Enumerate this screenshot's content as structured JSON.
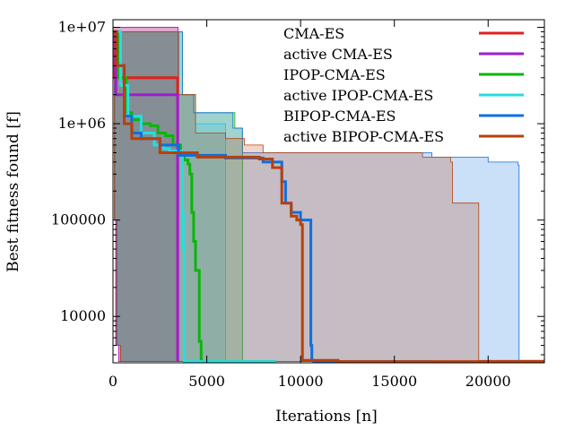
{
  "chart_data": {
    "type": "line",
    "title": "",
    "xlabel": "Iterations [n]",
    "ylabel": "Best fitness found [f]",
    "xlim": [
      0,
      23000
    ],
    "ylim": [
      3300,
      12000000
    ],
    "yscale": "log",
    "grid": false,
    "legend_position": "top-right",
    "x_ticks": [
      {
        "value": 0,
        "label": "0"
      },
      {
        "value": 5000,
        "label": "5000"
      },
      {
        "value": 10000,
        "label": "10000"
      },
      {
        "value": 15000,
        "label": "15000"
      },
      {
        "value": 20000,
        "label": "20000"
      }
    ],
    "y_ticks": [
      {
        "value": 10000000,
        "label": "1e+07"
      },
      {
        "value": 1000000,
        "label": "1e+06"
      },
      {
        "value": 100000,
        "label": "100000"
      },
      {
        "value": 10000,
        "label": "10000"
      }
    ],
    "series": [
      {
        "name": "CMA-ES",
        "color": "#e0201b",
        "median": [
          [
            0,
            9000000
          ],
          [
            100,
            3000000
          ],
          [
            3400,
            3000000
          ],
          [
            3450,
            3400
          ]
        ],
        "band_upper": [
          [
            0,
            10000000
          ],
          [
            3450,
            10000000
          ],
          [
            3460,
            3400
          ]
        ],
        "band_lower": [
          [
            0,
            9000000
          ],
          [
            80,
            100000
          ],
          [
            150,
            5000
          ],
          [
            300,
            3400
          ],
          [
            3460,
            3400
          ]
        ]
      },
      {
        "name": "active CMA-ES",
        "color": "#a31ad5",
        "median": [
          [
            0,
            9000000
          ],
          [
            150,
            2000000
          ],
          [
            3400,
            2000000
          ],
          [
            3450,
            3400
          ]
        ],
        "band_upper": [
          [
            0,
            10000000
          ],
          [
            3450,
            10000000
          ],
          [
            3460,
            3400
          ]
        ],
        "band_lower": [
          [
            0,
            9000000
          ],
          [
            80,
            100000
          ],
          [
            150,
            5000
          ],
          [
            300,
            3400
          ],
          [
            3460,
            3400
          ]
        ]
      },
      {
        "name": "IPOP-CMA-ES",
        "color": "#0ab60a",
        "median": [
          [
            0,
            9000000
          ],
          [
            300,
            3000000
          ],
          [
            700,
            1300000
          ],
          [
            1000,
            1100000
          ],
          [
            1500,
            1000000
          ],
          [
            2000,
            950000
          ],
          [
            2400,
            800000
          ],
          [
            2800,
            750000
          ],
          [
            3200,
            600000
          ],
          [
            3600,
            470000
          ],
          [
            3800,
            420000
          ],
          [
            4000,
            380000
          ],
          [
            4100,
            300000
          ],
          [
            4200,
            120000
          ],
          [
            4300,
            60000
          ],
          [
            4400,
            30000
          ],
          [
            4600,
            5500
          ],
          [
            4700,
            3400
          ],
          [
            8700,
            3400
          ]
        ],
        "band_upper": [
          [
            0,
            9000000
          ],
          [
            3600,
            9000000
          ],
          [
            3700,
            2000000
          ],
          [
            4200,
            2000000
          ],
          [
            4400,
            1300000
          ],
          [
            6300,
            1300000
          ],
          [
            6500,
            900000
          ],
          [
            6800,
            900000
          ],
          [
            6900,
            3400
          ]
        ],
        "band_lower": [
          [
            0,
            9000000
          ],
          [
            80,
            100000
          ],
          [
            200,
            5000
          ],
          [
            400,
            3400
          ],
          [
            7000,
            3400
          ]
        ]
      },
      {
        "name": "active IPOP-CMA-ES",
        "color": "#27dde0",
        "median": [
          [
            0,
            9000000
          ],
          [
            400,
            2500000
          ],
          [
            800,
            1200000
          ],
          [
            1500,
            800000
          ],
          [
            2200,
            600000
          ],
          [
            2700,
            550000
          ],
          [
            3000,
            520000
          ],
          [
            3400,
            520000
          ],
          [
            3600,
            500000
          ],
          [
            3700,
            120000
          ],
          [
            3750,
            50000
          ],
          [
            3800,
            3400
          ],
          [
            8700,
            3400
          ]
        ],
        "band_upper": [
          [
            0,
            9000000
          ],
          [
            3400,
            9000000
          ],
          [
            3500,
            2000000
          ],
          [
            4300,
            2000000
          ],
          [
            4400,
            1000000
          ],
          [
            5900,
            1000000
          ],
          [
            6000,
            3400
          ]
        ],
        "band_lower": [
          [
            0,
            9000000
          ],
          [
            80,
            100000
          ],
          [
            200,
            5000
          ],
          [
            400,
            3400
          ],
          [
            6000,
            3400
          ]
        ]
      },
      {
        "name": "BIPOP-CMA-ES",
        "color": "#0f6fe0",
        "median": [
          [
            0,
            9000000
          ],
          [
            200,
            4000000
          ],
          [
            600,
            1200000
          ],
          [
            1000,
            800000
          ],
          [
            1500,
            700000
          ],
          [
            2500,
            600000
          ],
          [
            3500,
            470000
          ],
          [
            6000,
            440000
          ],
          [
            8000,
            400000
          ],
          [
            9000,
            250000
          ],
          [
            9200,
            150000
          ],
          [
            9500,
            120000
          ],
          [
            10000,
            100000
          ],
          [
            10500,
            100000
          ],
          [
            10550,
            5000
          ],
          [
            10600,
            3500
          ],
          [
            10700,
            3400
          ],
          [
            17000,
            3400
          ]
        ],
        "band_upper": [
          [
            0,
            9000000
          ],
          [
            3600,
            9000000
          ],
          [
            3700,
            2000000
          ],
          [
            4200,
            2000000
          ],
          [
            4300,
            1300000
          ],
          [
            6300,
            1300000
          ],
          [
            6400,
            900000
          ],
          [
            6800,
            900000
          ],
          [
            6900,
            500000
          ],
          [
            16500,
            500000
          ],
          [
            17000,
            450000
          ],
          [
            19500,
            450000
          ],
          [
            20000,
            400000
          ],
          [
            21600,
            370000
          ],
          [
            21650,
            3500
          ],
          [
            23000,
            3400
          ]
        ],
        "band_lower": [
          [
            0,
            9000000
          ],
          [
            80,
            100000
          ],
          [
            200,
            5000
          ],
          [
            400,
            3400
          ],
          [
            23000,
            3400
          ]
        ]
      },
      {
        "name": "active BIPOP-CMA-ES",
        "color": "#b8400c",
        "median": [
          [
            0,
            9000000
          ],
          [
            200,
            4000000
          ],
          [
            600,
            1000000
          ],
          [
            1000,
            700000
          ],
          [
            2000,
            700000
          ],
          [
            2500,
            500000
          ],
          [
            4000,
            500000
          ],
          [
            4500,
            450000
          ],
          [
            7800,
            430000
          ],
          [
            8500,
            350000
          ],
          [
            9000,
            150000
          ],
          [
            9500,
            110000
          ],
          [
            9800,
            100000
          ],
          [
            10000,
            90000
          ],
          [
            10100,
            3500
          ],
          [
            12000,
            3400
          ],
          [
            23000,
            3400
          ]
        ],
        "band_upper": [
          [
            0,
            9000000
          ],
          [
            3400,
            9000000
          ],
          [
            3500,
            2000000
          ],
          [
            4300,
            2000000
          ],
          [
            4400,
            800000
          ],
          [
            6000,
            700000
          ],
          [
            7000,
            600000
          ],
          [
            8000,
            500000
          ],
          [
            16000,
            500000
          ],
          [
            16500,
            450000
          ],
          [
            18000,
            400000
          ],
          [
            18100,
            150000
          ],
          [
            19000,
            150000
          ],
          [
            19500,
            3500
          ],
          [
            23000,
            3400
          ]
        ],
        "band_lower": [
          [
            0,
            9000000
          ],
          [
            80,
            100000
          ],
          [
            200,
            5000
          ],
          [
            400,
            3400
          ],
          [
            23000,
            3400
          ]
        ]
      }
    ]
  }
}
